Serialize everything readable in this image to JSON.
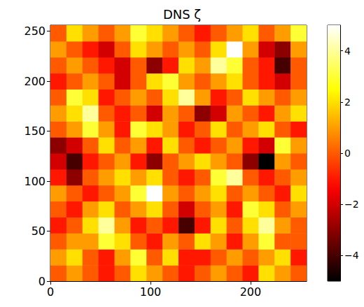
{
  "chart_data": {
    "type": "heatmap",
    "title": "DNS ζ",
    "xlim": [
      0,
      256
    ],
    "ylim": [
      0,
      256
    ],
    "xticks": [
      0,
      100,
      200
    ],
    "yticks": [
      0,
      50,
      100,
      150,
      200,
      250
    ],
    "x": [
      8,
      24,
      40,
      56,
      72,
      88,
      104,
      120,
      136,
      152,
      168,
      184,
      200,
      216,
      232,
      248
    ],
    "y": [
      8,
      24,
      40,
      56,
      72,
      88,
      104,
      120,
      136,
      152,
      168,
      184,
      200,
      216,
      232,
      248
    ],
    "cells": [
      [
        0,
        1,
        0,
        -1,
        0,
        2,
        1,
        0,
        -1,
        0,
        1,
        0,
        -1,
        2,
        1,
        0
      ],
      [
        1,
        2,
        0,
        -1,
        1,
        3,
        0,
        2,
        -1,
        -1,
        0,
        1,
        0,
        1,
        2,
        -1
      ],
      [
        0,
        1,
        1,
        3,
        2,
        0,
        -1,
        1,
        0,
        2,
        1,
        -1,
        1,
        3,
        0,
        0
      ],
      [
        -1,
        0,
        2,
        4,
        1,
        -1,
        0,
        -1,
        -4,
        -1,
        2,
        0,
        2,
        4,
        1,
        0
      ],
      [
        0,
        -1,
        1,
        2,
        0,
        1,
        2,
        0,
        -2,
        0,
        1,
        -1,
        3,
        2,
        0,
        1
      ],
      [
        1,
        0,
        -1,
        0,
        1,
        3,
        5,
        1,
        0,
        1,
        2,
        0,
        1,
        0,
        -1,
        2
      ],
      [
        -1,
        -3,
        0,
        1,
        2,
        1,
        2,
        0,
        -1,
        0,
        3,
        4,
        0,
        -1,
        0,
        1
      ],
      [
        -2,
        -4,
        -1,
        0,
        1,
        -1,
        -3,
        0,
        1,
        2,
        1,
        0,
        -3,
        -5,
        1,
        0
      ],
      [
        -3,
        -2,
        0,
        2,
        0,
        1,
        -1,
        2,
        0,
        -1,
        0,
        1,
        -1,
        -2,
        3,
        1
      ],
      [
        0,
        1,
        3,
        1,
        -1,
        3,
        2,
        1,
        -1,
        0,
        2,
        0,
        1,
        2,
        0,
        -1
      ],
      [
        1,
        2,
        4,
        0,
        -1,
        0,
        -2,
        1,
        0,
        -3,
        -2,
        1,
        0,
        -1,
        1,
        2
      ],
      [
        0,
        3,
        2,
        -1,
        0,
        1,
        0,
        2,
        4,
        1,
        -1,
        0,
        2,
        1,
        0,
        1
      ],
      [
        -1,
        0,
        1,
        0,
        -2,
        0,
        2,
        3,
        1,
        0,
        1,
        2,
        0,
        -1,
        -2,
        0
      ],
      [
        0,
        1,
        0,
        -1,
        -2,
        0,
        -3,
        -1,
        2,
        1,
        4,
        3,
        0,
        -1,
        -4,
        0
      ],
      [
        1,
        0,
        -1,
        -2,
        0,
        2,
        1,
        0,
        1,
        0,
        2,
        5,
        1,
        -2,
        -3,
        1
      ],
      [
        0,
        2,
        1,
        0,
        1,
        3,
        2,
        1,
        0,
        -1,
        0,
        1,
        2,
        0,
        1,
        3
      ]
    ],
    "colorbar_range": [
      -5,
      5
    ],
    "colorbar_ticks": [
      {
        "value": -4,
        "label": "−4"
      },
      {
        "value": -2,
        "label": "−2"
      },
      0,
      2,
      4
    ]
  }
}
